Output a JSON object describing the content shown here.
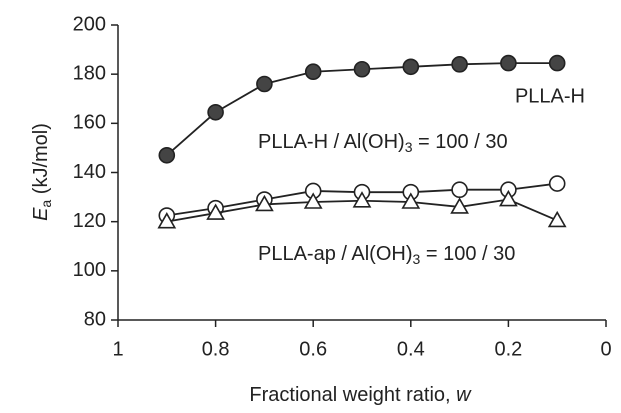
{
  "chart_data": {
    "type": "line",
    "x_label": "Fractional weight ratio, w",
    "y_label": "Ea (kJ/mol)",
    "xlim": [
      1,
      0
    ],
    "xticks": [
      1,
      0.8,
      0.6,
      0.4,
      0.2,
      0
    ],
    "ylim": [
      80,
      200
    ],
    "yticks": [
      80,
      100,
      120,
      140,
      160,
      180,
      200
    ],
    "x": [
      0.9,
      0.8,
      0.7,
      0.6,
      0.5,
      0.4,
      0.3,
      0.2,
      0.1
    ],
    "series": [
      {
        "name": "PLLA-H",
        "color": "#222222",
        "marker": "filled-circle",
        "values": [
          147,
          164.5,
          176,
          181,
          182,
          183,
          184,
          184.5,
          184.5
        ]
      },
      {
        "name": "PLLA-H / Al(OH)3 = 100 / 30",
        "color": "#222222",
        "marker": "open-circle",
        "values": [
          122.5,
          125.5,
          129,
          132.5,
          132,
          132,
          133,
          133,
          135.5
        ]
      },
      {
        "name": "PLLA-ap / Al(OH)3 = 100 / 30",
        "color": "#222222",
        "marker": "open-triangle",
        "values": [
          120,
          123.5,
          127,
          128,
          128.5,
          128,
          126,
          129,
          120.5
        ]
      }
    ]
  }
}
